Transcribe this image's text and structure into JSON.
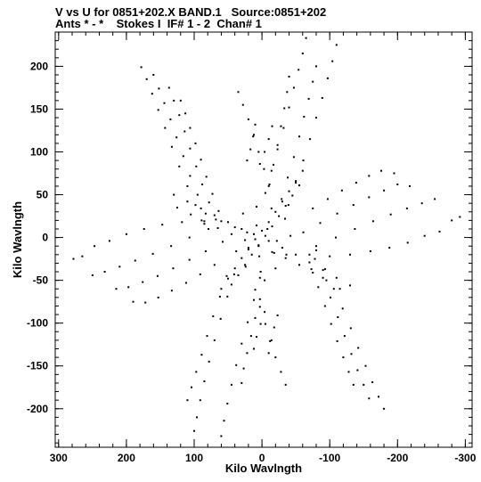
{
  "header": {
    "line1": "V vs U for 0851+202.X BAND.1   Source:0851+202",
    "line2": "Ants * - *    Stokes I  IF# 1 - 2  Chan# 1"
  },
  "chart_data": {
    "type": "scatter",
    "xlabel": "Kilo Wavlngth",
    "ylabel": "Kilo Wavlngth",
    "xlim": [
      305,
      -310
    ],
    "ylim": [
      -245,
      240
    ],
    "x_reversed": true,
    "grid": false,
    "xticks": [
      300,
      200,
      100,
      0,
      -100,
      -200,
      -300
    ],
    "xtick_labels": [
      "300",
      "200",
      "100",
      "0",
      "-100",
      "-200",
      "-300"
    ],
    "yticks": [
      200,
      150,
      100,
      50,
      0,
      -50,
      -100,
      -150,
      -200
    ],
    "ytick_labels": [
      "200",
      "150",
      "100",
      "50",
      "0",
      "-50",
      "-100",
      "-150",
      "-200"
    ],
    "x_minor_step": 20,
    "y_minor_step": 10,
    "marker_color": "#000000",
    "uv_tracks": [
      {
        "u": 178,
        "v": 199
      },
      {
        "u": 170,
        "v": 185
      },
      {
        "u": 162,
        "v": 168
      },
      {
        "u": 153,
        "v": 149
      },
      {
        "u": 143,
        "v": 128
      },
      {
        "u": 133,
        "v": 106
      },
      {
        "u": 122,
        "v": 83
      },
      {
        "u": 110,
        "v": 60
      },
      {
        "u": 98,
        "v": 38
      },
      {
        "u": 85,
        "v": 16
      },
      {
        "u": 160,
        "v": 190
      },
      {
        "u": 152,
        "v": 174
      },
      {
        "u": 144,
        "v": 157
      },
      {
        "u": 135,
        "v": 138
      },
      {
        "u": 126,
        "v": 117
      },
      {
        "u": 116,
        "v": 95
      },
      {
        "u": 106,
        "v": 72
      },
      {
        "u": 95,
        "v": 50
      },
      {
        "u": 83,
        "v": 28
      },
      {
        "u": 137,
        "v": 175
      },
      {
        "u": 130,
        "v": 160
      },
      {
        "u": 122,
        "v": 143
      },
      {
        "u": 114,
        "v": 124
      },
      {
        "u": 106,
        "v": 104
      },
      {
        "u": 97,
        "v": 83
      },
      {
        "u": 88,
        "v": 62
      },
      {
        "u": 78,
        "v": 41
      },
      {
        "u": 68,
        "v": 21
      },
      {
        "u": 120,
        "v": 160
      },
      {
        "u": 113,
        "v": 145
      },
      {
        "u": 106,
        "v": 128
      },
      {
        "u": 98,
        "v": 110
      },
      {
        "u": 90,
        "v": 91
      },
      {
        "u": 82,
        "v": 71
      },
      {
        "u": 73,
        "v": 51
      },
      {
        "u": 64,
        "v": 31
      },
      {
        "u": -65,
        "v": 233
      },
      {
        "u": -60,
        "v": 215
      },
      {
        "u": -54,
        "v": 196
      },
      {
        "u": -47,
        "v": 175
      },
      {
        "u": -40,
        "v": 152
      },
      {
        "u": -32,
        "v": 128
      },
      {
        "u": -23,
        "v": 103
      },
      {
        "u": -14,
        "v": 78
      },
      {
        "u": -5,
        "v": 52
      },
      {
        "u": -110,
        "v": 225
      },
      {
        "u": -104,
        "v": 206
      },
      {
        "u": -97,
        "v": 186
      },
      {
        "u": -89,
        "v": 163
      },
      {
        "u": -80,
        "v": 140
      },
      {
        "u": -71,
        "v": 115
      },
      {
        "u": -61,
        "v": 90
      },
      {
        "u": -50,
        "v": 64
      },
      {
        "u": -39,
        "v": 38
      },
      {
        "u": -80,
        "v": 200
      },
      {
        "u": -75,
        "v": 182
      },
      {
        "u": -69,
        "v": 162
      },
      {
        "u": -62,
        "v": 141
      },
      {
        "u": -55,
        "v": 118
      },
      {
        "u": -47,
        "v": 94
      },
      {
        "u": -38,
        "v": 70
      },
      {
        "u": -29,
        "v": 45
      },
      {
        "u": -40,
        "v": 188
      },
      {
        "u": -37,
        "v": 170
      },
      {
        "u": -33,
        "v": 151
      },
      {
        "u": -28,
        "v": 130
      },
      {
        "u": -23,
        "v": 108
      },
      {
        "u": -17,
        "v": 85
      },
      {
        "u": -11,
        "v": 62
      },
      {
        "u": 35,
        "v": 170
      },
      {
        "u": 28,
        "v": 155
      },
      {
        "u": 20,
        "v": 138
      },
      {
        "u": 12,
        "v": 120
      },
      {
        "u": 5,
        "v": 100
      },
      {
        "u": -3,
        "v": 80
      },
      {
        "u": -10,
        "v": 60
      },
      {
        "u": 10,
        "v": 132
      },
      {
        "u": 13,
        "v": 118
      },
      {
        "u": 17,
        "v": 103
      },
      {
        "u": 22,
        "v": 90
      },
      {
        "u": -15,
        "v": 130
      },
      {
        "u": -10,
        "v": 115
      },
      {
        "u": -4,
        "v": 100
      },
      {
        "u": 3,
        "v": 86
      },
      {
        "u": -292,
        "v": 24
      },
      {
        "u": -280,
        "v": 20
      },
      {
        "u": -262,
        "v": 7
      },
      {
        "u": -240,
        "v": 2
      },
      {
        "u": -215,
        "v": -6
      },
      {
        "u": -188,
        "v": -12
      },
      {
        "u": -160,
        "v": -16
      },
      {
        "u": -130,
        "v": -20
      },
      {
        "u": -100,
        "v": -22
      },
      {
        "u": -70,
        "v": -20
      },
      {
        "u": -255,
        "v": 45
      },
      {
        "u": -236,
        "v": 40
      },
      {
        "u": -214,
        "v": 34
      },
      {
        "u": -190,
        "v": 27
      },
      {
        "u": -164,
        "v": 19
      },
      {
        "u": -137,
        "v": 10
      },
      {
        "u": -109,
        "v": 0
      },
      {
        "u": -80,
        "v": -10
      },
      {
        "u": -218,
        "v": 60
      },
      {
        "u": -200,
        "v": 62
      },
      {
        "u": -180,
        "v": 55
      },
      {
        "u": -158,
        "v": 47
      },
      {
        "u": -135,
        "v": 38
      },
      {
        "u": -111,
        "v": 28
      },
      {
        "u": -86,
        "v": 17
      },
      {
        "u": -61,
        "v": 6
      },
      {
        "u": -195,
        "v": 75
      },
      {
        "u": -176,
        "v": 78
      },
      {
        "u": -158,
        "v": 72
      },
      {
        "u": -139,
        "v": 64
      },
      {
        "u": -118,
        "v": 55
      },
      {
        "u": -97,
        "v": 45
      },
      {
        "u": -75,
        "v": 34
      },
      {
        "u": 278,
        "v": -25
      },
      {
        "u": 265,
        "v": -22
      },
      {
        "u": 247,
        "v": -10
      },
      {
        "u": 225,
        "v": -4
      },
      {
        "u": 200,
        "v": 4
      },
      {
        "u": 174,
        "v": 10
      },
      {
        "u": 147,
        "v": 15
      },
      {
        "u": 118,
        "v": 18
      },
      {
        "u": 89,
        "v": 20
      },
      {
        "u": 60,
        "v": 19
      },
      {
        "u": 250,
        "v": -44
      },
      {
        "u": 232,
        "v": -40
      },
      {
        "u": 210,
        "v": -34
      },
      {
        "u": 187,
        "v": -27
      },
      {
        "u": 161,
        "v": -19
      },
      {
        "u": 134,
        "v": -10
      },
      {
        "u": 107,
        "v": 0
      },
      {
        "u": 79,
        "v": 10
      },
      {
        "u": 215,
        "v": -60
      },
      {
        "u": 197,
        "v": -58
      },
      {
        "u": 176,
        "v": -52
      },
      {
        "u": 154,
        "v": -45
      },
      {
        "u": 131,
        "v": -36
      },
      {
        "u": 107,
        "v": -26
      },
      {
        "u": 83,
        "v": -16
      },
      {
        "u": 58,
        "v": -5
      },
      {
        "u": 190,
        "v": -75
      },
      {
        "u": 172,
        "v": -76
      },
      {
        "u": 153,
        "v": -70
      },
      {
        "u": 133,
        "v": -62
      },
      {
        "u": 112,
        "v": -53
      },
      {
        "u": 91,
        "v": -43
      },
      {
        "u": 70,
        "v": -32
      },
      {
        "u": 100,
        "v": -226
      },
      {
        "u": 96,
        "v": -210
      },
      {
        "u": 91,
        "v": -190
      },
      {
        "u": 85,
        "v": -168
      },
      {
        "u": 78,
        "v": -145
      },
      {
        "u": 70,
        "v": -120
      },
      {
        "u": 61,
        "v": -95
      },
      {
        "u": 51,
        "v": -69
      },
      {
        "u": 41,
        "v": -43
      },
      {
        "u": 60,
        "v": -232
      },
      {
        "u": 56,
        "v": -214
      },
      {
        "u": 51,
        "v": -194
      },
      {
        "u": 45,
        "v": -172
      },
      {
        "u": 38,
        "v": -149
      },
      {
        "u": 30,
        "v": -124
      },
      {
        "u": 21,
        "v": -99
      },
      {
        "u": 12,
        "v": -73
      },
      {
        "u": 3,
        "v": -47
      },
      {
        "u": 110,
        "v": -190
      },
      {
        "u": 104,
        "v": -175
      },
      {
        "u": 97,
        "v": -157
      },
      {
        "u": 89,
        "v": -137
      },
      {
        "u": 81,
        "v": -115
      },
      {
        "u": 72,
        "v": -92
      },
      {
        "u": 62,
        "v": -69
      },
      {
        "u": 52,
        "v": -45
      },
      {
        "u": 30,
        "v": -170
      },
      {
        "u": 27,
        "v": -153
      },
      {
        "u": 22,
        "v": -135
      },
      {
        "u": 16,
        "v": -115
      },
      {
        "u": 10,
        "v": -94
      },
      {
        "u": 3,
        "v": -72
      },
      {
        "u": -4,
        "v": -50
      },
      {
        "u": -180,
        "v": -200
      },
      {
        "u": -172,
        "v": -186
      },
      {
        "u": -163,
        "v": -169
      },
      {
        "u": -153,
        "v": -150
      },
      {
        "u": -142,
        "v": -129
      },
      {
        "u": -131,
        "v": -106
      },
      {
        "u": -119,
        "v": -83
      },
      {
        "u": -106,
        "v": -60
      },
      {
        "u": -93,
        "v": -37
      },
      {
        "u": -80,
        "v": -15
      },
      {
        "u": -158,
        "v": -188
      },
      {
        "u": -150,
        "v": -172
      },
      {
        "u": -141,
        "v": -155
      },
      {
        "u": -132,
        "v": -136
      },
      {
        "u": -122,
        "v": -115
      },
      {
        "u": -112,
        "v": -93
      },
      {
        "u": -101,
        "v": -70
      },
      {
        "u": -90,
        "v": -47
      },
      {
        "u": -78,
        "v": -25
      },
      {
        "u": -135,
        "v": -172
      },
      {
        "u": -128,
        "v": -157
      },
      {
        "u": -120,
        "v": -140
      },
      {
        "u": -111,
        "v": -121
      },
      {
        "u": -102,
        "v": -101
      },
      {
        "u": -93,
        "v": -80
      },
      {
        "u": -83,
        "v": -58
      },
      {
        "u": -73,
        "v": -37
      },
      {
        "u": -35,
        "v": -172
      },
      {
        "u": -28,
        "v": -157
      },
      {
        "u": -20,
        "v": -140
      },
      {
        "u": -12,
        "v": -121
      },
      {
        "u": -5,
        "v": -101
      },
      {
        "u": 3,
        "v": -81
      },
      {
        "u": 10,
        "v": -61
      },
      {
        "u": -10,
        "v": -135
      },
      {
        "u": -14,
        "v": -120
      },
      {
        "u": -18,
        "v": -105
      },
      {
        "u": -23,
        "v": -91
      },
      {
        "u": 12,
        "v": -130
      },
      {
        "u": 8,
        "v": -116
      },
      {
        "u": 2,
        "v": -101
      },
      {
        "u": -4,
        "v": -87
      },
      {
        "u": 130,
        "v": 50
      },
      {
        "u": 110,
        "v": 42
      },
      {
        "u": 90,
        "v": 34
      },
      {
        "u": 70,
        "v": 26
      },
      {
        "u": 50,
        "v": 18
      },
      {
        "u": 30,
        "v": 10
      },
      {
        "u": 12,
        "v": 4
      },
      {
        "u": -10,
        "v": -4
      },
      {
        "u": -30,
        "v": -12
      },
      {
        "u": -50,
        "v": -20
      },
      {
        "u": -70,
        "v": -29
      },
      {
        "u": -90,
        "v": -38
      },
      {
        "u": -110,
        "v": -47
      },
      {
        "u": -130,
        "v": -56
      },
      {
        "u": 125,
        "v": 35
      },
      {
        "u": 105,
        "v": 27
      },
      {
        "u": 85,
        "v": 19
      },
      {
        "u": 65,
        "v": 11
      },
      {
        "u": 45,
        "v": 4
      },
      {
        "u": 25,
        "v": -3
      },
      {
        "u": 5,
        "v": -10
      },
      {
        "u": -15,
        "v": -17
      },
      {
        "u": -35,
        "v": -24
      },
      {
        "u": -55,
        "v": -32
      },
      {
        "u": -75,
        "v": -41
      },
      {
        "u": -95,
        "v": -50
      },
      {
        "u": -115,
        "v": -60
      },
      {
        "u": 60,
        "v": -60
      },
      {
        "u": 50,
        "v": -48
      },
      {
        "u": 40,
        "v": -36
      },
      {
        "u": 30,
        "v": -24
      },
      {
        "u": 20,
        "v": -12
      },
      {
        "u": 10,
        "v": -2
      },
      {
        "u": 0,
        "v": 8
      },
      {
        "u": -10,
        "v": 18
      },
      {
        "u": -20,
        "v": 30
      },
      {
        "u": -30,
        "v": 42
      },
      {
        "u": -40,
        "v": 54
      },
      {
        "u": -50,
        "v": 66
      },
      {
        "u": -60,
        "v": 78
      },
      {
        "u": 45,
        "v": -55
      },
      {
        "u": 35,
        "v": -44
      },
      {
        "u": 25,
        "v": -32
      },
      {
        "u": 15,
        "v": -20
      },
      {
        "u": 5,
        "v": -9
      },
      {
        "u": -5,
        "v": 2
      },
      {
        "u": -15,
        "v": 13
      },
      {
        "u": -25,
        "v": 25
      },
      {
        "u": -35,
        "v": 37
      },
      {
        "u": -45,
        "v": 49
      },
      {
        "u": -55,
        "v": 61
      },
      {
        "u": 22,
        "v": 6
      },
      {
        "u": 8,
        "v": 14
      },
      {
        "u": -8,
        "v": 10
      },
      {
        "u": -22,
        "v": -4
      },
      {
        "u": -18,
        "v": -18
      },
      {
        "u": 4,
        "v": -22
      },
      {
        "u": 20,
        "v": -14
      },
      {
        "u": 40,
        "v": 12
      },
      {
        "u": 28,
        "v": 28
      },
      {
        "u": 8,
        "v": 36
      },
      {
        "u": -14,
        "v": 34
      },
      {
        "u": -34,
        "v": 22
      },
      {
        "u": -42,
        "v": 2
      },
      {
        "u": -36,
        "v": -20
      },
      {
        "u": -20,
        "v": -36
      },
      {
        "u": 2,
        "v": -40
      },
      {
        "u": 24,
        "v": -34
      },
      {
        "u": 38,
        "v": -16
      }
    ]
  }
}
